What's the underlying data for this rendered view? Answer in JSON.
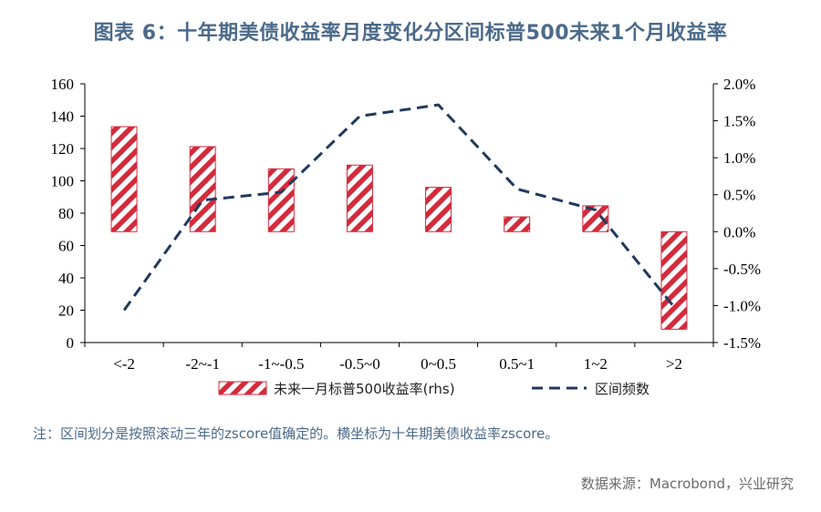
{
  "title": "图表 6：十年期美债收益率月度变化分区间标普500未来1个月收益率",
  "note": "注：区间划分是按照滚动三年的zscore值确定的。横坐标为十年期美债收益率zscore。",
  "source": "数据来源：Macrobond，兴业研究",
  "chart_data": {
    "type": "bar",
    "categories": [
      "<-2",
      "-2~-1",
      "-1~-0.5",
      "-0.5~0",
      "0~0.5",
      "0.5~1",
      "1~2",
      ">2"
    ],
    "left_axis": {
      "min": 0,
      "max": 160,
      "ticks": [
        "0",
        "20",
        "40",
        "60",
        "80",
        "100",
        "120",
        "140",
        "160"
      ]
    },
    "right_axis": {
      "min": -1.5,
      "max": 2.0,
      "ticks": [
        "-1.5%",
        "-1.0%",
        "-0.5%",
        "0.0%",
        "0.5%",
        "1.0%",
        "1.5%",
        "2.0%"
      ]
    },
    "series": [
      {
        "name": "未来一月标普500收益率(rhs)",
        "kind": "bar",
        "axis": "right",
        "unit": "%",
        "values": [
          1.42,
          1.15,
          0.85,
          0.9,
          0.6,
          0.2,
          0.35,
          -1.32
        ],
        "color": "#d42a3c"
      },
      {
        "name": "区间频数",
        "kind": "line",
        "axis": "left",
        "style": "dashed",
        "values": [
          20,
          88,
          93,
          140,
          147,
          95,
          82,
          22
        ],
        "color": "#203a5c"
      }
    ]
  }
}
